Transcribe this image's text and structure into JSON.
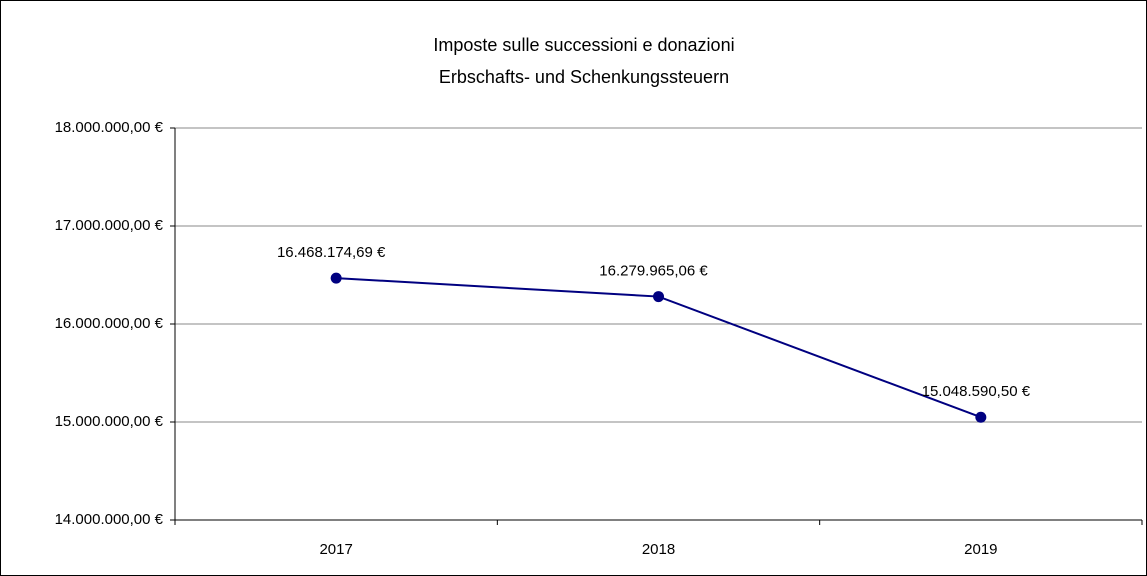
{
  "chart_data": {
    "type": "line",
    "title": "Imposte sulle successioni e donazioni",
    "subtitle": "Erbschafts- und Schenkungssteuern",
    "categories": [
      "2017",
      "2018",
      "2019"
    ],
    "series": [
      {
        "name": null,
        "color": "#000080",
        "values": [
          16468174.69,
          16279965.06,
          15048590.5
        ],
        "value_labels": [
          "16.468.174,69 €",
          "16.279.965,06 €",
          "15.048.590,50 €"
        ]
      }
    ],
    "ylim": [
      14000000,
      18000000
    ],
    "yticks": [
      {
        "value": 14000000,
        "label": "14.000.000,00 €"
      },
      {
        "value": 15000000,
        "label": "15.000.000,00 €"
      },
      {
        "value": 16000000,
        "label": "16.000.000,00 €"
      },
      {
        "value": 17000000,
        "label": "17.000.000,00 €"
      },
      {
        "value": 18000000,
        "label": "18.000.000,00 €"
      }
    ],
    "grid": true
  }
}
